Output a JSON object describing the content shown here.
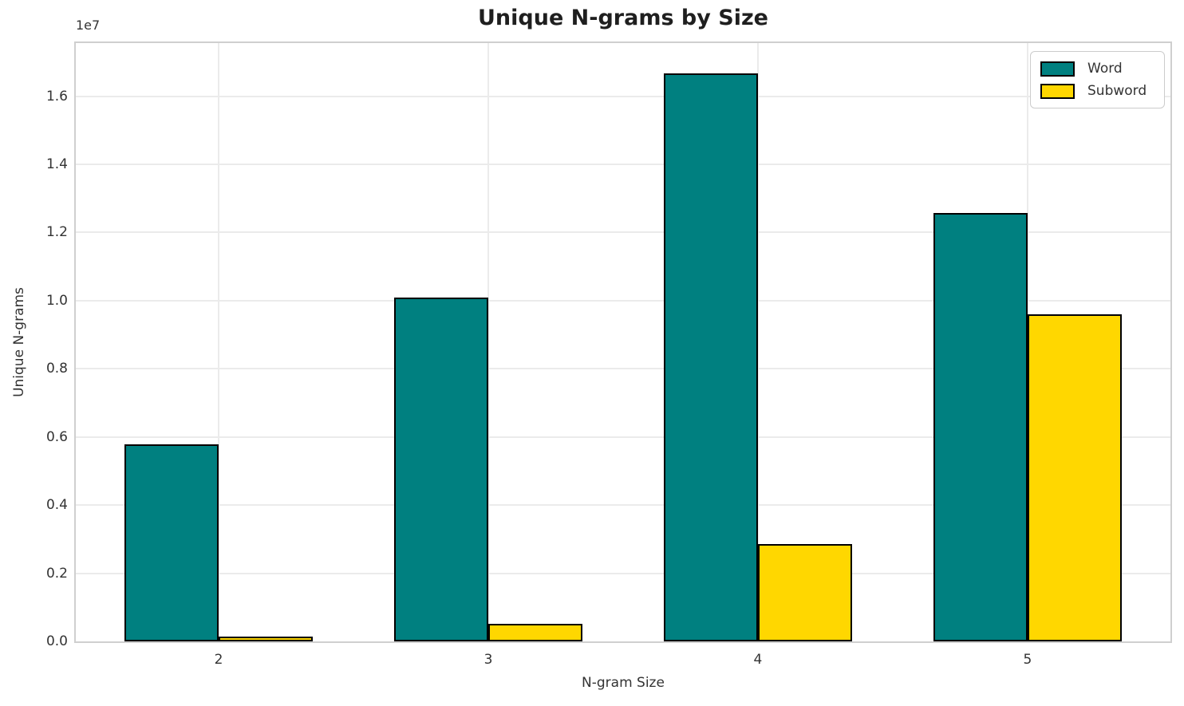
{
  "chart_data": {
    "type": "bar",
    "title": "Unique N-grams by Size",
    "xlabel": "N-gram Size",
    "ylabel": "Unique N-grams",
    "y_offset_text": "1e7",
    "categories": [
      "2",
      "3",
      "4",
      "5"
    ],
    "x_positions": [
      2,
      3,
      4,
      5
    ],
    "series": [
      {
        "name": "Word",
        "color": "#008080",
        "values": [
          5780000,
          10100000,
          16680000,
          12580000
        ]
      },
      {
        "name": "Subword",
        "color": "#FFD700",
        "values": [
          130000,
          520000,
          2850000,
          9600000
        ]
      }
    ],
    "ylim": [
      0,
      17560000
    ],
    "yticks": [
      0,
      2000000,
      4000000,
      6000000,
      8000000,
      10000000,
      12000000,
      14000000,
      16000000
    ],
    "ytick_labels": [
      "0.0",
      "0.2",
      "0.4",
      "0.6",
      "0.8",
      "1.0",
      "1.2",
      "1.4",
      "1.6"
    ],
    "xlim": [
      1.47,
      5.53
    ],
    "bar_width_units": 0.35,
    "grid": true,
    "legend_position": "upper right",
    "colors": {
      "grid": "#ebebeb",
      "spine": "#cfcfcf",
      "bar_edge": "#000000",
      "text": "#333333"
    }
  }
}
